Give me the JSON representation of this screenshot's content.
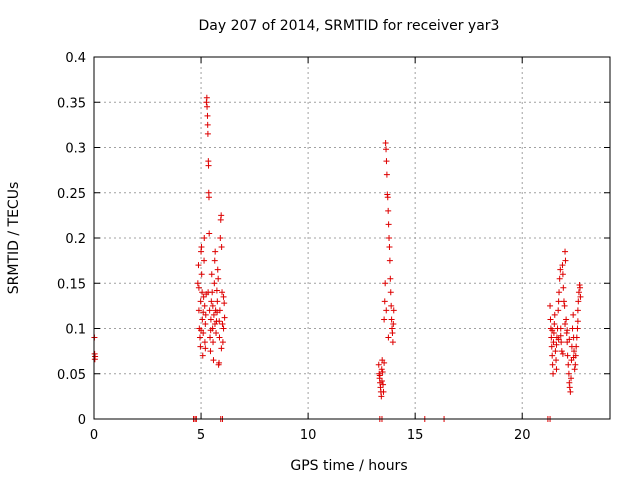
{
  "chart_data": {
    "type": "scatter",
    "title": "Day 207 of 2014, SRMTID for receiver yar3",
    "xlabel": "GPS time / hours",
    "ylabel": "SRMTID / TECUs",
    "xlim": [
      0,
      24.1
    ],
    "ylim": [
      0,
      0.4
    ],
    "x_ticks": [
      0,
      5,
      10,
      15,
      20
    ],
    "x_tick_labels": [
      "0",
      "5",
      "10",
      "15",
      "20"
    ],
    "y_ticks": [
      0,
      0.05,
      0.1,
      0.15,
      0.2,
      0.25,
      0.3,
      0.35,
      0.4
    ],
    "y_tick_labels": [
      "0",
      "0.05",
      "0.1",
      "0.15",
      "0.2",
      "0.25",
      "0.3",
      "0.35",
      "0.4"
    ],
    "grid": true,
    "marker": "+",
    "color": "#dd0000",
    "series": [
      {
        "name": "SRMTID",
        "points": [
          [
            0.02,
            0.09
          ],
          [
            0.03,
            0.072
          ],
          [
            0.04,
            0.066
          ],
          [
            0.05,
            0.069
          ],
          [
            4.65,
            0.0
          ],
          [
            4.72,
            0.0
          ],
          [
            4.78,
            0.0
          ],
          [
            5.92,
            0.0
          ],
          [
            6.0,
            0.0
          ],
          [
            13.35,
            0.0
          ],
          [
            13.45,
            0.0
          ],
          [
            15.45,
            0.0
          ],
          [
            16.35,
            0.0
          ],
          [
            21.2,
            0.0
          ],
          [
            21.3,
            0.0
          ],
          [
            4.85,
            0.15
          ],
          [
            4.88,
            0.17
          ],
          [
            4.9,
            0.12
          ],
          [
            4.92,
            0.1
          ],
          [
            4.95,
            0.09
          ],
          [
            4.97,
            0.08
          ],
          [
            4.98,
            0.13
          ],
          [
            5.0,
            0.185
          ],
          [
            5.02,
            0.19
          ],
          [
            5.03,
            0.16
          ],
          [
            5.05,
            0.14
          ],
          [
            5.06,
            0.11
          ],
          [
            5.08,
            0.07
          ],
          [
            5.1,
            0.095
          ],
          [
            5.12,
            0.135
          ],
          [
            5.14,
            0.175
          ],
          [
            5.15,
            0.2
          ],
          [
            5.17,
            0.125
          ],
          [
            5.18,
            0.085
          ],
          [
            5.2,
            0.105
          ],
          [
            5.22,
            0.115
          ],
          [
            5.24,
            0.138
          ],
          [
            5.25,
            0.35
          ],
          [
            5.27,
            0.355
          ],
          [
            5.28,
            0.345
          ],
          [
            5.3,
            0.335
          ],
          [
            5.31,
            0.325
          ],
          [
            5.32,
            0.315
          ],
          [
            5.34,
            0.285
          ],
          [
            5.35,
            0.28
          ],
          [
            5.36,
            0.25
          ],
          [
            5.37,
            0.245
          ],
          [
            5.38,
            0.205
          ],
          [
            5.4,
            0.12
          ],
          [
            5.42,
            0.09
          ],
          [
            5.44,
            0.075
          ],
          [
            5.46,
            0.11
          ],
          [
            5.48,
            0.13
          ],
          [
            5.5,
            0.16
          ],
          [
            5.52,
            0.14
          ],
          [
            5.54,
            0.1
          ],
          [
            5.56,
            0.085
          ],
          [
            5.58,
            0.065
          ],
          [
            5.6,
            0.115
          ],
          [
            5.62,
            0.15
          ],
          [
            5.64,
            0.175
          ],
          [
            5.66,
            0.185
          ],
          [
            5.68,
            0.12
          ],
          [
            5.7,
            0.095
          ],
          [
            5.72,
            0.108
          ],
          [
            5.74,
            0.142
          ],
          [
            5.76,
            0.13
          ],
          [
            5.78,
            0.165
          ],
          [
            5.8,
            0.155
          ],
          [
            5.82,
            0.06
          ],
          [
            5.84,
            0.062
          ],
          [
            5.86,
            0.09
          ],
          [
            5.88,
            0.12
          ],
          [
            5.9,
            0.2
          ],
          [
            5.92,
            0.22
          ],
          [
            5.94,
            0.225
          ],
          [
            5.96,
            0.19
          ],
          [
            5.98,
            0.14
          ],
          [
            6.0,
            0.105
          ],
          [
            6.02,
            0.085
          ],
          [
            6.05,
            0.1
          ],
          [
            6.08,
            0.128
          ],
          [
            6.1,
            0.112
          ],
          [
            4.9,
            0.145
          ],
          [
            5.0,
            0.098
          ],
          [
            5.1,
            0.118
          ],
          [
            5.2,
            0.078
          ],
          [
            5.33,
            0.14
          ],
          [
            5.45,
            0.098
          ],
          [
            5.55,
            0.125
          ],
          [
            5.65,
            0.105
          ],
          [
            5.75,
            0.118
          ],
          [
            5.85,
            0.108
          ],
          [
            5.95,
            0.078
          ],
          [
            6.05,
            0.135
          ],
          [
            13.3,
            0.06
          ],
          [
            13.32,
            0.05
          ],
          [
            13.34,
            0.045
          ],
          [
            13.36,
            0.04
          ],
          [
            13.38,
            0.035
          ],
          [
            13.4,
            0.03
          ],
          [
            13.42,
            0.025
          ],
          [
            13.44,
            0.055
          ],
          [
            13.46,
            0.065
          ],
          [
            13.48,
            0.052
          ],
          [
            13.5,
            0.038
          ],
          [
            13.52,
            0.03
          ],
          [
            13.55,
            0.11
          ],
          [
            13.58,
            0.13
          ],
          [
            13.6,
            0.15
          ],
          [
            13.62,
            0.305
          ],
          [
            13.64,
            0.298
          ],
          [
            13.66,
            0.285
          ],
          [
            13.68,
            0.27
          ],
          [
            13.7,
            0.248
          ],
          [
            13.72,
            0.245
          ],
          [
            13.74,
            0.23
          ],
          [
            13.76,
            0.215
          ],
          [
            13.78,
            0.2
          ],
          [
            13.8,
            0.19
          ],
          [
            13.82,
            0.175
          ],
          [
            13.84,
            0.155
          ],
          [
            13.86,
            0.14
          ],
          [
            13.88,
            0.125
          ],
          [
            13.9,
            0.11
          ],
          [
            13.92,
            0.1
          ],
          [
            13.94,
            0.095
          ],
          [
            13.96,
            0.085
          ],
          [
            13.98,
            0.105
          ],
          [
            14.0,
            0.12
          ],
          [
            13.35,
            0.048
          ],
          [
            13.45,
            0.042
          ],
          [
            13.55,
            0.062
          ],
          [
            13.65,
            0.12
          ],
          [
            13.75,
            0.09
          ],
          [
            21.3,
            0.125
          ],
          [
            21.32,
            0.11
          ],
          [
            21.34,
            0.1
          ],
          [
            21.36,
            0.09
          ],
          [
            21.38,
            0.08
          ],
          [
            21.4,
            0.07
          ],
          [
            21.42,
            0.06
          ],
          [
            21.44,
            0.05
          ],
          [
            21.46,
            0.085
          ],
          [
            21.48,
            0.095
          ],
          [
            21.5,
            0.105
          ],
          [
            21.52,
            0.115
          ],
          [
            21.55,
            0.075
          ],
          [
            21.58,
            0.065
          ],
          [
            21.6,
            0.055
          ],
          [
            21.62,
            0.09
          ],
          [
            21.65,
            0.1
          ],
          [
            21.68,
            0.12
          ],
          [
            21.7,
            0.13
          ],
          [
            21.72,
            0.14
          ],
          [
            21.75,
            0.155
          ],
          [
            21.78,
            0.165
          ],
          [
            21.8,
            0.1
          ],
          [
            21.82,
            0.085
          ],
          [
            21.85,
            0.075
          ],
          [
            21.88,
            0.17
          ],
          [
            21.9,
            0.16
          ],
          [
            21.92,
            0.145
          ],
          [
            21.95,
            0.13
          ],
          [
            21.98,
            0.125
          ],
          [
            22.0,
            0.185
          ],
          [
            22.02,
            0.175
          ],
          [
            22.05,
            0.11
          ],
          [
            22.08,
            0.095
          ],
          [
            22.1,
            0.085
          ],
          [
            22.12,
            0.07
          ],
          [
            22.15,
            0.06
          ],
          [
            22.18,
            0.05
          ],
          [
            22.2,
            0.04
          ],
          [
            22.22,
            0.035
          ],
          [
            22.25,
            0.03
          ],
          [
            22.28,
            0.045
          ],
          [
            22.3,
            0.065
          ],
          [
            22.32,
            0.08
          ],
          [
            22.35,
            0.1
          ],
          [
            22.38,
            0.115
          ],
          [
            22.4,
            0.09
          ],
          [
            22.42,
            0.075
          ],
          [
            22.45,
            0.055
          ],
          [
            22.48,
            0.06
          ],
          [
            22.5,
            0.07
          ],
          [
            22.52,
            0.08
          ],
          [
            22.55,
            0.09
          ],
          [
            22.58,
            0.1
          ],
          [
            22.6,
            0.12
          ],
          [
            22.62,
            0.13
          ],
          [
            22.65,
            0.14
          ],
          [
            22.68,
            0.148
          ],
          [
            22.7,
            0.145
          ],
          [
            22.72,
            0.135
          ],
          [
            21.4,
            0.098
          ],
          [
            21.6,
            0.082
          ],
          [
            21.8,
            0.092
          ],
          [
            22.0,
            0.105
          ],
          [
            22.2,
            0.088
          ],
          [
            22.4,
            0.068
          ],
          [
            22.6,
            0.108
          ],
          [
            21.7,
            0.088
          ],
          [
            21.9,
            0.072
          ],
          [
            22.1,
            0.098
          ]
        ]
      }
    ]
  }
}
